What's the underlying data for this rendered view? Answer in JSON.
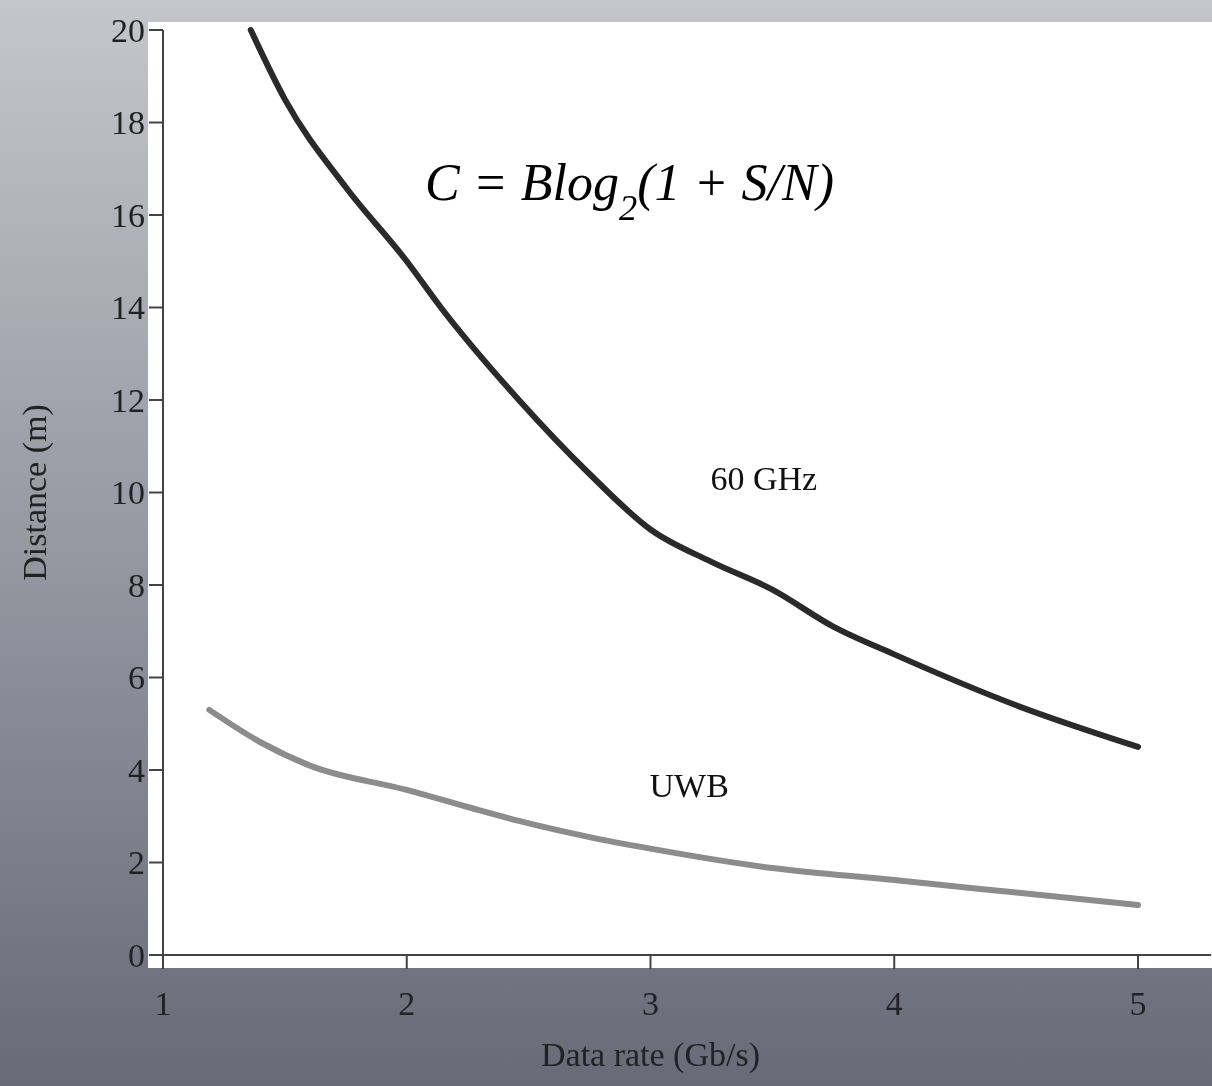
{
  "chart_data": {
    "type": "line",
    "xlabel": "Data rate (Gb/s)",
    "ylabel": "Distance (m)",
    "xlim": [
      1,
      5.3
    ],
    "ylim": [
      0,
      20
    ],
    "xticks": [
      1,
      2,
      3,
      4,
      5
    ],
    "yticks": [
      0,
      2,
      4,
      6,
      8,
      10,
      12,
      14,
      16,
      18,
      20
    ],
    "grid": false,
    "legend": false,
    "marker": "none",
    "line_style": "solid",
    "annotations": [
      "C = Blog$_{2}$(1 + S/N)"
    ],
    "series": [
      {
        "name": "60 GHz",
        "color": "#2a2a2a",
        "x": [
          1.36,
          1.5,
          1.75,
          2.0,
          2.14,
          2.46,
          2.75,
          3.0,
          3.25,
          3.5,
          3.75,
          4.0,
          4.5,
          5.0
        ],
        "values": [
          20,
          18.5,
          16.6,
          15.0,
          14,
          12,
          10.4,
          9.2,
          8.5,
          7.9,
          7.1,
          6.5,
          5.4,
          4.5
        ]
      },
      {
        "name": "UWB",
        "color": "#8c8c8c",
        "x": [
          1.19,
          1.4,
          1.6,
          2.0,
          2.25,
          2.46,
          2.75,
          3.0,
          3.5,
          4.0,
          4.5,
          5.0
        ],
        "values": [
          5.3,
          4.6,
          4.1,
          3.57,
          3.2,
          2.9,
          2.55,
          2.3,
          1.88,
          1.62,
          1.35,
          1.08
        ]
      }
    ]
  }
}
